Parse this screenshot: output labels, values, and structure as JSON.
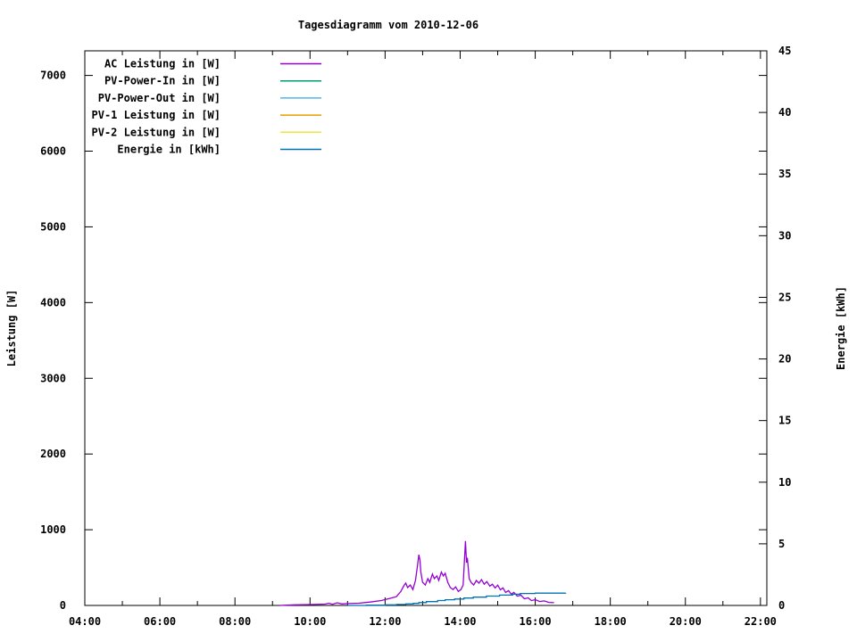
{
  "title": "Tagesdiagramm vom 2010-12-06",
  "chart_data": {
    "type": "line",
    "title": "Tagesdiagramm vom 2010-12-06",
    "xlabel": "",
    "ylabel": "Leistung [W]",
    "y2label": "Energie [kWh]",
    "x_unit": "time of day (hours)",
    "xlim": [
      4,
      22.17
    ],
    "ylim": [
      0,
      7325
    ],
    "y2lim": [
      0,
      45
    ],
    "grid": false,
    "legend_position": "top-left-inside",
    "xticks": [
      {
        "h": 4,
        "label": "04:00"
      },
      {
        "h": 6,
        "label": "06:00"
      },
      {
        "h": 8,
        "label": "08:00"
      },
      {
        "h": 10,
        "label": "10:00"
      },
      {
        "h": 12,
        "label": "12:00"
      },
      {
        "h": 14,
        "label": "14:00"
      },
      {
        "h": 16,
        "label": "16:00"
      },
      {
        "h": 18,
        "label": "18:00"
      },
      {
        "h": 20,
        "label": "20:00"
      },
      {
        "h": 22,
        "label": "22:00"
      }
    ],
    "xminor_hours": [
      5,
      7,
      9,
      11,
      13,
      15,
      17,
      19,
      21
    ],
    "yticks": [
      0,
      1000,
      2000,
      3000,
      4000,
      5000,
      6000,
      7000
    ],
    "y2ticks": [
      0,
      5,
      10,
      15,
      20,
      25,
      30,
      35,
      40,
      45
    ],
    "series": [
      {
        "name": "AC Leistung in [W]",
        "color": "#9400d3",
        "axis": "left",
        "step": false,
        "points": [
          [
            9.19,
            0
          ],
          [
            9.6,
            8
          ],
          [
            10.0,
            12
          ],
          [
            10.4,
            18
          ],
          [
            10.5,
            30
          ],
          [
            10.6,
            15
          ],
          [
            10.72,
            35
          ],
          [
            10.85,
            20
          ],
          [
            11.0,
            25
          ],
          [
            11.3,
            30
          ],
          [
            11.6,
            45
          ],
          [
            11.9,
            65
          ],
          [
            12.1,
            90
          ],
          [
            12.3,
            115
          ],
          [
            12.42,
            185
          ],
          [
            12.5,
            260
          ],
          [
            12.55,
            295
          ],
          [
            12.6,
            235
          ],
          [
            12.67,
            270
          ],
          [
            12.74,
            210
          ],
          [
            12.81,
            330
          ],
          [
            12.86,
            510
          ],
          [
            12.9,
            670
          ],
          [
            12.93,
            595
          ],
          [
            12.95,
            450
          ],
          [
            13.0,
            305
          ],
          [
            13.07,
            270
          ],
          [
            13.14,
            355
          ],
          [
            13.19,
            305
          ],
          [
            13.26,
            415
          ],
          [
            13.31,
            355
          ],
          [
            13.38,
            390
          ],
          [
            13.43,
            330
          ],
          [
            13.5,
            440
          ],
          [
            13.55,
            390
          ],
          [
            13.6,
            425
          ],
          [
            13.67,
            305
          ],
          [
            13.74,
            235
          ],
          [
            13.81,
            210
          ],
          [
            13.88,
            245
          ],
          [
            13.95,
            185
          ],
          [
            14.02,
            210
          ],
          [
            14.08,
            270
          ],
          [
            14.14,
            850
          ],
          [
            14.17,
            565
          ],
          [
            14.19,
            630
          ],
          [
            14.24,
            355
          ],
          [
            14.29,
            305
          ],
          [
            14.36,
            270
          ],
          [
            14.43,
            330
          ],
          [
            14.5,
            295
          ],
          [
            14.57,
            340
          ],
          [
            14.64,
            280
          ],
          [
            14.71,
            315
          ],
          [
            14.79,
            255
          ],
          [
            14.86,
            280
          ],
          [
            14.93,
            230
          ],
          [
            15.0,
            268
          ],
          [
            15.07,
            207
          ],
          [
            15.14,
            232
          ],
          [
            15.21,
            172
          ],
          [
            15.29,
            196
          ],
          [
            15.36,
            148
          ],
          [
            15.43,
            172
          ],
          [
            15.52,
            124
          ],
          [
            15.62,
            136
          ],
          [
            15.71,
            88
          ],
          [
            15.81,
            100
          ],
          [
            15.9,
            64
          ],
          [
            16.0,
            76
          ],
          [
            16.12,
            52
          ],
          [
            16.24,
            60
          ],
          [
            16.36,
            40
          ],
          [
            16.5,
            36
          ]
        ]
      },
      {
        "name": "PV-Power-In in [W]",
        "color": "#009e73",
        "axis": "left",
        "step": false,
        "points": []
      },
      {
        "name": "PV-Power-Out in [W]",
        "color": "#56b4e9",
        "axis": "left",
        "step": false,
        "points": []
      },
      {
        "name": "PV-1 Leistung in [W]",
        "color": "#e69f00",
        "axis": "left",
        "step": false,
        "points": []
      },
      {
        "name": "PV-2 Leistung in [W]",
        "color": "#f0e442",
        "axis": "left",
        "step": false,
        "points": []
      },
      {
        "name": "Energie in [kWh]",
        "color": "#0072b2",
        "axis": "right",
        "step": true,
        "points": [
          [
            11.0,
            0.0
          ],
          [
            11.5,
            0.02
          ],
          [
            12.0,
            0.05
          ],
          [
            12.3,
            0.08
          ],
          [
            12.55,
            0.12
          ],
          [
            12.75,
            0.17
          ],
          [
            12.9,
            0.23
          ],
          [
            13.1,
            0.31
          ],
          [
            13.4,
            0.4
          ],
          [
            13.6,
            0.46
          ],
          [
            13.85,
            0.52
          ],
          [
            14.1,
            0.6
          ],
          [
            14.35,
            0.67
          ],
          [
            14.7,
            0.76
          ],
          [
            15.05,
            0.84
          ],
          [
            15.4,
            0.91
          ],
          [
            15.6,
            0.97
          ],
          [
            16.0,
            1.0
          ],
          [
            16.81,
            1.01
          ]
        ]
      }
    ]
  },
  "colors": {
    "foreground": "#000000",
    "background": "#ffffff",
    "ac_leistung": "#9400d3",
    "pv_power_in": "#009e73",
    "pv_power_out": "#56b4e9",
    "pv1_leistung": "#e69f00",
    "pv2_leistung": "#f0e442",
    "energie": "#0072b2"
  }
}
